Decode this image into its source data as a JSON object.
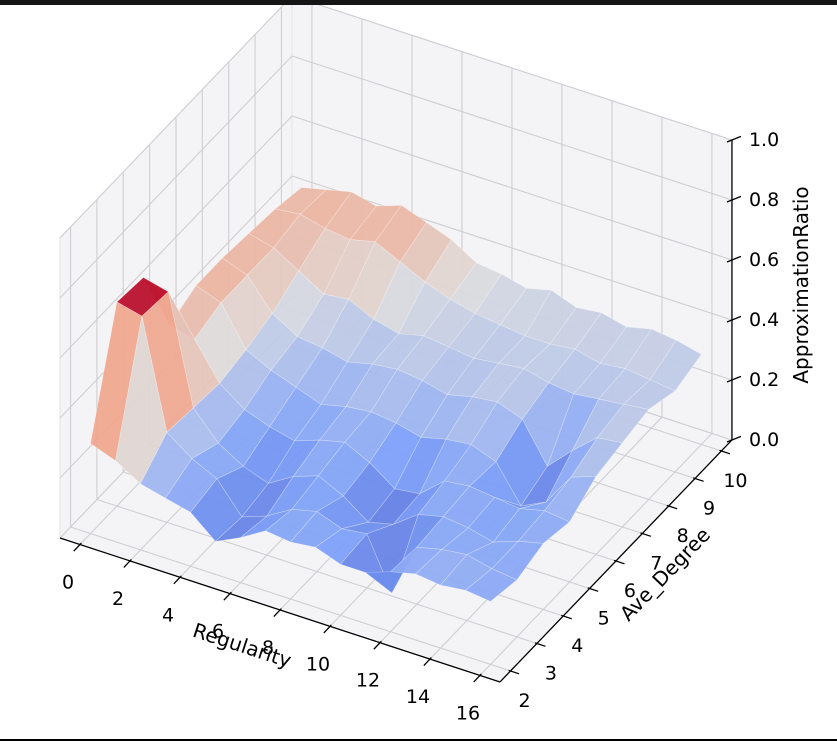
{
  "window": {
    "top_bar_color": "#151515",
    "bottom_border_color": "#000000",
    "background": "#ffffff"
  },
  "chart_data": {
    "type": "surface3d",
    "title": "",
    "xlabel": "Regularity",
    "ylabel": "Ave_Degree",
    "zlabel": "ApproximationRatio",
    "x_ticks": [
      0,
      2,
      4,
      6,
      8,
      10,
      12,
      14,
      16
    ],
    "y_ticks": [
      2,
      3,
      4,
      5,
      6,
      7,
      8,
      9,
      10
    ],
    "z_ticks": [
      0,
      0.2,
      0.4,
      0.6,
      0.8,
      1
    ],
    "z_tick_labels": [
      "0.0",
      "0.2",
      "0.4",
      "0.6",
      "0.8",
      "1.0"
    ],
    "xlim": [
      0,
      16
    ],
    "ylim": [
      2,
      10
    ],
    "zlim": [
      0,
      1
    ],
    "x_values": [
      0,
      1,
      2,
      3,
      4,
      5,
      6,
      7,
      8,
      9,
      10,
      11,
      12,
      13,
      14,
      15,
      16
    ],
    "y_values": [
      2,
      3,
      4,
      5,
      6,
      7,
      8,
      9,
      10
    ],
    "z_grid": [
      [
        0.3,
        0.27,
        0.22,
        0.2,
        0.18,
        0.11,
        0.15,
        0.2,
        0.19,
        0.2,
        0.17,
        0.17,
        0.2,
        0.22,
        0.21,
        0.22,
        0.21
      ],
      [
        0.68,
        0.66,
        0.3,
        0.24,
        0.2,
        0.1,
        0.13,
        0.18,
        0.2,
        0.17,
        0.18,
        0.01,
        0.19,
        0.21,
        0.22,
        0.2,
        0.19
      ],
      [
        0.67,
        0.65,
        0.29,
        0.2,
        0.15,
        0.12,
        0.17,
        0.2,
        0.16,
        0.1,
        0.12,
        0.18,
        0.2,
        0.19,
        0.17,
        0.2,
        0.22
      ],
      [
        0.42,
        0.4,
        0.28,
        0.22,
        0.19,
        0.17,
        0.2,
        0.22,
        0.18,
        0.12,
        0.13,
        0.2,
        0.21,
        0.2,
        0.19,
        0.21,
        0.2
      ],
      [
        0.46,
        0.43,
        0.3,
        0.26,
        0.23,
        0.2,
        0.22,
        0.23,
        0.22,
        0.2,
        0.22,
        0.23,
        0.2,
        0.08,
        0.12,
        0.23,
        0.26
      ],
      [
        0.46,
        0.43,
        0.33,
        0.28,
        0.27,
        0.25,
        0.27,
        0.28,
        0.27,
        0.25,
        0.27,
        0.28,
        0.25,
        0.12,
        0.2,
        0.27,
        0.28
      ],
      [
        0.45,
        0.43,
        0.38,
        0.33,
        0.34,
        0.3,
        0.28,
        0.3,
        0.29,
        0.28,
        0.29,
        0.3,
        0.28,
        0.27,
        0.28,
        0.29,
        0.3
      ],
      [
        0.44,
        0.45,
        0.43,
        0.42,
        0.44,
        0.4,
        0.36,
        0.33,
        0.31,
        0.3,
        0.29,
        0.29,
        0.3,
        0.28,
        0.29,
        0.28,
        0.27
      ],
      [
        0.42,
        0.44,
        0.46,
        0.44,
        0.47,
        0.44,
        0.41,
        0.36,
        0.35,
        0.33,
        0.35,
        0.32,
        0.33,
        0.31,
        0.33,
        0.32,
        0.3
      ]
    ],
    "colormap": {
      "name": "coolwarm",
      "stops": [
        [
          0.0,
          "#3b4cc0"
        ],
        [
          0.25,
          "#7c9ff9"
        ],
        [
          0.5,
          "#dddddd"
        ],
        [
          0.75,
          "#f49a7b"
        ],
        [
          1.0,
          "#b40426"
        ]
      ]
    },
    "style": {
      "pane_color": "#f4f4f6",
      "grid_color": "#cfcfd3",
      "axis_color": "#000000",
      "text_color": "#000000",
      "tick_label_size": 19,
      "axis_label_size": 20,
      "surface_opacity": 0.95,
      "seam_color": "rgba(255,255,255,0.38)"
    }
  }
}
